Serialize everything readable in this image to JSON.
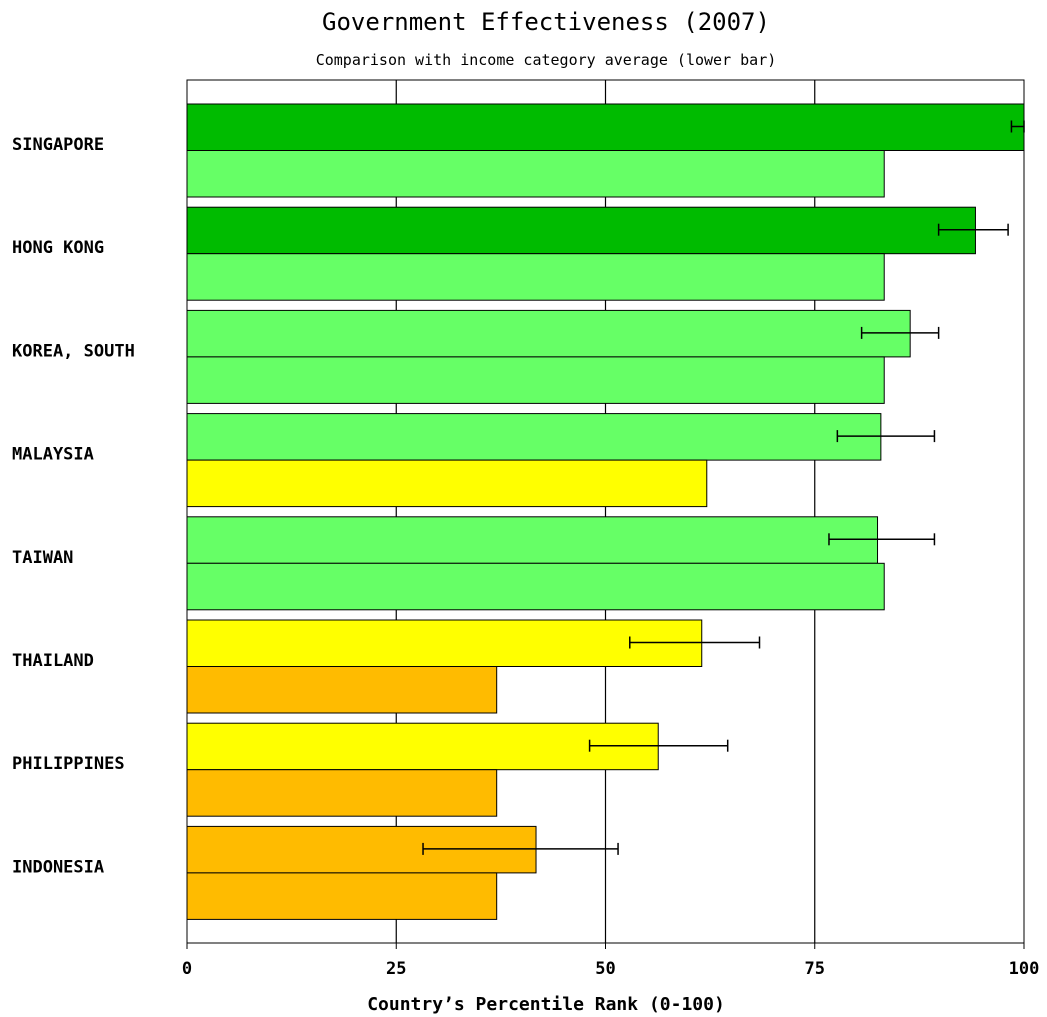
{
  "chart_data": {
    "type": "bar",
    "orientation": "horizontal",
    "title": "Government Effectiveness (2007)",
    "subtitle": "Comparison with income category average (lower bar)",
    "xlabel": "Country’s Percentile Rank (0-100)",
    "ylabel": "",
    "xlim": [
      0,
      100
    ],
    "xticks": [
      0,
      25,
      50,
      75,
      100
    ],
    "grid": true,
    "categories": [
      "SINGAPORE",
      "HONG KONG",
      "KOREA, SOUTH",
      "MALAYSIA",
      "TAIWAN",
      "THAILAND",
      "PHILIPPINES",
      "INDONESIA"
    ],
    "series": [
      {
        "values": [
          100,
          94.2,
          86.4,
          82.9,
          82.5,
          61.5,
          56.3,
          41.7
        ],
        "error_low": [
          98.5,
          89.8,
          80.6,
          77.7,
          76.7,
          52.9,
          48.1,
          28.2
        ],
        "error_high": [
          100,
          98.1,
          89.8,
          89.3,
          89.3,
          68.4,
          64.6,
          51.5
        ],
        "colors": [
          "#00bb00",
          "#00bb00",
          "#66ff66",
          "#66ff66",
          "#66ff66",
          "#ffff00",
          "#ffff00",
          "#ffbb00"
        ]
      },
      {
        "values": [
          83.3,
          83.3,
          83.3,
          62.1,
          83.3,
          37.0,
          37.0,
          37.0
        ],
        "colors": [
          "#66ff66",
          "#66ff66",
          "#66ff66",
          "#ffff00",
          "#66ff66",
          "#ffbb00",
          "#ffbb00",
          "#ffbb00"
        ]
      }
    ]
  }
}
